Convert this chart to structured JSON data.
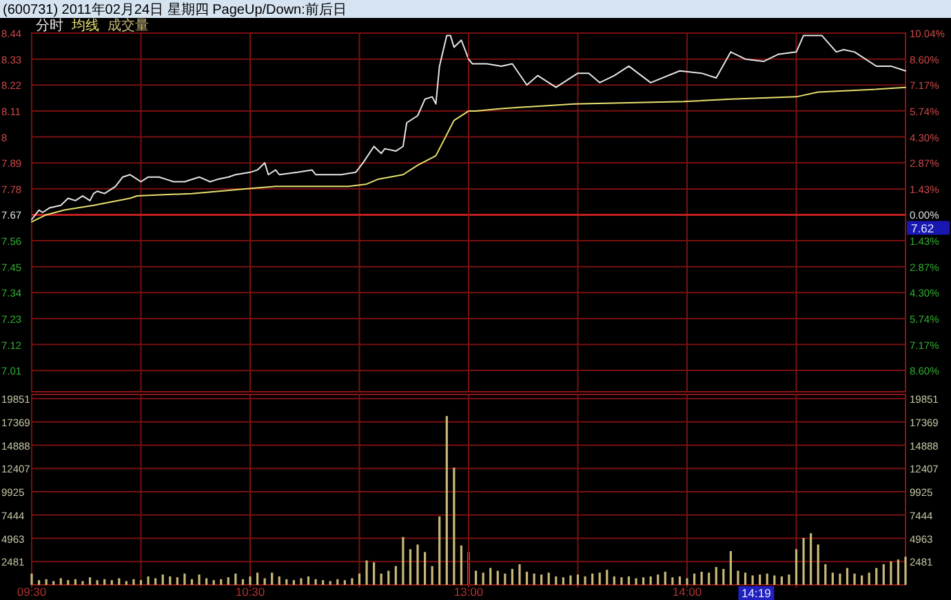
{
  "chart_data": [
    {
      "type": "line",
      "title": "(600731) 2011年02月24日 星期四 PageUp/Down:前后日",
      "legend": "top left",
      "grid": true,
      "tick_labels": "y",
      "line_style": "solid",
      "series": [
        {
          "name": "分时",
          "color": "#e6e6e6",
          "x": [
            "2011-02-24T09:30",
            "2011-02-24T09:32",
            "2011-02-24T09:33",
            "2011-02-24T09:35",
            "2011-02-24T09:38",
            "2011-02-24T09:40",
            "2011-02-24T09:42",
            "2011-02-24T09:44",
            "2011-02-24T09:46",
            "2011-02-24T09:47",
            "2011-02-24T09:48",
            "2011-02-24T09:50",
            "2011-02-24T09:53",
            "2011-02-24T09:55",
            "2011-02-24T09:57",
            "2011-02-24T09:58",
            "2011-02-24T10:00",
            "2011-02-24T10:02",
            "2011-02-24T10:05",
            "2011-02-24T10:07",
            "2011-02-24T10:09",
            "2011-02-24T10:12",
            "2011-02-24T10:16",
            "2011-02-24T10:19",
            "2011-02-24T10:21",
            "2011-02-24T10:24",
            "2011-02-24T10:26",
            "2011-02-24T10:30",
            "2011-02-24T10:32",
            "2011-02-24T10:34",
            "2011-02-24T10:35",
            "2011-02-24T10:37",
            "2011-02-24T10:38",
            "2011-02-24T10:43",
            "2011-02-24T10:47",
            "2011-02-24T10:48",
            "2011-02-24T10:55",
            "2011-02-24T10:59",
            "2011-02-24T11:01",
            "2011-02-24T11:04",
            "2011-02-24T11:06",
            "2011-02-24T11:07",
            "2011-02-24T11:10",
            "2011-02-24T11:12",
            "2011-02-24T11:13",
            "2011-02-24T11:16",
            "2011-02-24T11:18",
            "2011-02-24T11:20",
            "2011-02-24T11:21",
            "2011-02-24T11:22",
            "2011-02-24T11:24",
            "2011-02-24T11:25",
            "2011-02-24T11:26",
            "2011-02-24T11:28",
            "2011-02-24T11:30"
          ],
          "values": [
            7.65,
            7.69,
            7.68,
            7.7,
            7.71,
            7.74,
            7.73,
            7.75,
            7.73,
            7.76,
            7.77,
            7.76,
            7.79,
            7.83,
            7.84,
            7.83,
            7.81,
            7.83,
            7.83,
            7.82,
            7.81,
            7.81,
            7.83,
            7.81,
            7.82,
            7.83,
            7.84,
            7.85,
            7.86,
            7.89,
            7.84,
            7.86,
            7.84,
            7.85,
            7.86,
            7.84,
            7.84,
            7.85,
            7.89,
            7.96,
            7.93,
            7.95,
            7.94,
            7.96,
            8.06,
            8.09,
            8.16,
            8.17,
            8.14,
            8.3,
            8.43,
            8.43,
            8.38,
            8.41,
            8.33
          ]
        },
        {
          "name": "均线",
          "color": "#e8e070",
          "x": [
            "2011-02-24T09:30",
            "2011-02-24T09:34",
            "2011-02-24T09:39",
            "2011-02-24T09:47",
            "2011-02-24T09:57",
            "2011-02-24T09:59",
            "2011-02-24T10:14",
            "2011-02-24T10:29",
            "2011-02-24T10:37",
            "2011-02-24T10:57",
            "2011-02-24T11:02",
            "2011-02-24T11:05",
            "2011-02-24T11:12",
            "2011-02-24T11:16",
            "2011-02-24T11:21",
            "2011-02-24T11:23",
            "2011-02-24T11:26",
            "2011-02-24T11:29",
            "2011-02-24T11:30"
          ],
          "values": [
            7.64,
            7.67,
            7.69,
            7.71,
            7.74,
            7.75,
            7.76,
            7.78,
            7.79,
            7.79,
            7.8,
            7.82,
            7.84,
            7.88,
            7.92,
            7.98,
            8.07,
            8.1,
            8.11
          ]
        }
      ],
      "xlim": [
        "2011-02-24T09:30",
        "2011-02-24T11:30"
      ],
      "ylim": [
        6.92,
        8.44
      ],
      "yticks": [
        8.44,
        8.33,
        8.22,
        8.11,
        8.0,
        7.89,
        7.78,
        7.67,
        7.56,
        7.45,
        7.34,
        7.23,
        7.12,
        7.01
      ],
      "ref_lines": [
        {
          "axis": "y",
          "value": 7.67,
          "color": "#c02020"
        }
      ]
    },
    {
      "type": "line",
      "grid": true,
      "tick_labels": "y",
      "line_style": "solid",
      "series": [
        {
          "color": "#e6e6e6",
          "x": [
            "2011-02-24T13:00",
            "2011-02-24T13:01",
            "2011-02-24T13:05",
            "2011-02-24T13:09",
            "2011-02-24T13:12",
            "2011-02-24T13:16",
            "2011-02-24T13:19",
            "2011-02-24T13:24",
            "2011-02-24T13:30",
            "2011-02-24T13:33",
            "2011-02-24T13:36",
            "2011-02-24T13:40",
            "2011-02-24T13:44",
            "2011-02-24T13:50",
            "2011-02-24T13:58",
            "2011-02-24T14:04",
            "2011-02-24T14:08",
            "2011-02-24T14:12",
            "2011-02-24T14:16",
            "2011-02-24T14:21",
            "2011-02-24T14:25",
            "2011-02-24T14:30",
            "2011-02-24T14:32",
            "2011-02-24T14:37",
            "2011-02-24T14:41",
            "2011-02-24T14:43",
            "2011-02-24T14:46",
            "2011-02-24T14:52",
            "2011-02-24T14:56",
            "2011-02-24T15:00"
          ],
          "values": [
            8.33,
            8.31,
            8.31,
            8.3,
            8.31,
            8.22,
            8.26,
            8.21,
            8.27,
            8.27,
            8.23,
            8.26,
            8.3,
            8.23,
            8.28,
            8.27,
            8.25,
            8.36,
            8.33,
            8.32,
            8.35,
            8.36,
            8.43,
            8.43,
            8.36,
            8.37,
            8.36,
            8.3,
            8.3,
            8.28
          ]
        },
        {
          "color": "#e8e070",
          "x": [
            "2011-02-24T13:00",
            "2011-02-24T13:02",
            "2011-02-24T13:09",
            "2011-02-24T13:29",
            "2011-02-24T13:59",
            "2011-02-24T14:12",
            "2011-02-24T14:30",
            "2011-02-24T14:36",
            "2011-02-24T14:50",
            "2011-02-24T15:00"
          ],
          "values": [
            8.11,
            8.11,
            8.12,
            8.14,
            8.15,
            8.16,
            8.17,
            8.19,
            8.2,
            8.21
          ]
        }
      ],
      "xlim": [
        "2011-02-24T13:00",
        "2011-02-24T15:00"
      ],
      "ylim": [
        6.92,
        8.44
      ],
      "y2lim": [
        -9.78,
        10.04
      ],
      "y2ticks": [
        {
          "value": 10.04,
          "label": "10.04%"
        },
        {
          "value": 8.6,
          "label": "8.60%"
        },
        {
          "value": 7.17,
          "label": "7.17%"
        },
        {
          "value": 5.74,
          "label": "5.74%"
        },
        {
          "value": 4.3,
          "label": "4.30%"
        },
        {
          "value": 2.87,
          "label": "2.87%"
        },
        {
          "value": 1.43,
          "label": "1.43%"
        },
        {
          "value": 0,
          "label": "0.00%"
        },
        {
          "value": -1.43,
          "label": "1.43%"
        },
        {
          "value": -2.87,
          "label": "2.87%"
        },
        {
          "value": -4.3,
          "label": "4.30%"
        },
        {
          "value": -5.74,
          "label": "5.74%"
        },
        {
          "value": -7.17,
          "label": "7.17%"
        },
        {
          "value": -8.6,
          "label": "8.60%"
        }
      ],
      "ref_lines": [
        {
          "axis": "y2",
          "value": 0,
          "color": "#c02020"
        }
      ],
      "annotations": [
        "7.62"
      ]
    },
    {
      "type": "bar",
      "legend": "top left",
      "grid": true,
      "series": [
        {
          "name": "成交量",
          "color": "#c8b878",
          "x": [
            "2011-02-24T09:30",
            "2011-02-24T09:32",
            "2011-02-24T09:34",
            "2011-02-24T09:36",
            "2011-02-24T09:38",
            "2011-02-24T09:40",
            "2011-02-24T09:42",
            "2011-02-24T09:44",
            "2011-02-24T09:46",
            "2011-02-24T09:48",
            "2011-02-24T09:50",
            "2011-02-24T09:52",
            "2011-02-24T09:54",
            "2011-02-24T09:56",
            "2011-02-24T09:58",
            "2011-02-24T10:00",
            "2011-02-24T10:02",
            "2011-02-24T10:04",
            "2011-02-24T10:06",
            "2011-02-24T10:08",
            "2011-02-24T10:10",
            "2011-02-24T10:12",
            "2011-02-24T10:14",
            "2011-02-24T10:16",
            "2011-02-24T10:18",
            "2011-02-24T10:20",
            "2011-02-24T10:22",
            "2011-02-24T10:24",
            "2011-02-24T10:26",
            "2011-02-24T10:28",
            "2011-02-24T10:30",
            "2011-02-24T10:32",
            "2011-02-24T10:34",
            "2011-02-24T10:36",
            "2011-02-24T10:38",
            "2011-02-24T10:40",
            "2011-02-24T10:42",
            "2011-02-24T10:44",
            "2011-02-24T10:46",
            "2011-02-24T10:48",
            "2011-02-24T10:50",
            "2011-02-24T10:52",
            "2011-02-24T10:54",
            "2011-02-24T10:56",
            "2011-02-24T10:58",
            "2011-02-24T11:00",
            "2011-02-24T11:02",
            "2011-02-24T11:04",
            "2011-02-24T11:06",
            "2011-02-24T11:08",
            "2011-02-24T11:10",
            "2011-02-24T11:12",
            "2011-02-24T11:14",
            "2011-02-24T11:16",
            "2011-02-24T11:18",
            "2011-02-24T11:20",
            "2011-02-24T11:22",
            "2011-02-24T11:24",
            "2011-02-24T11:26",
            "2011-02-24T11:28",
            "2011-02-24T11:30"
          ],
          "values": [
            1200,
            500,
            600,
            400,
            700,
            500,
            600,
            400,
            800,
            500,
            600,
            500,
            700,
            400,
            600,
            500,
            900,
            700,
            1100,
            900,
            800,
            1200,
            600,
            1100,
            700,
            500,
            600,
            800,
            1200,
            600,
            900,
            1300,
            700,
            1300,
            900,
            600,
            500,
            700,
            900,
            600,
            500,
            400,
            600,
            500,
            700,
            1200,
            2600,
            2400,
            1200,
            1500,
            2000,
            5100,
            3800,
            4300,
            3500,
            2000,
            7300,
            18000,
            12500,
            4200,
            3500
          ]
        }
      ],
      "xlim": [
        "2011-02-24T09:30",
        "2011-02-24T11:30"
      ],
      "xticks": [
        {
          "value": "2011-02-24T09:30",
          "label": "09:30"
        },
        {
          "value": "2011-02-24T10:00",
          "label": null
        },
        {
          "value": "2011-02-24T10:30",
          "label": "10:30"
        },
        {
          "value": "2011-02-24T11:00",
          "label": null
        }
      ],
      "ylim": [
        0,
        20300
      ],
      "yticks": [
        2481,
        4963,
        7444,
        9925,
        12407,
        14888,
        17369,
        19851
      ]
    },
    {
      "type": "bar",
      "grid": true,
      "series": [
        {
          "color": "#c8b878",
          "x": [
            "2011-02-24T13:02",
            "2011-02-24T13:04",
            "2011-02-24T13:06",
            "2011-02-24T13:08",
            "2011-02-24T13:10",
            "2011-02-24T13:12",
            "2011-02-24T13:14",
            "2011-02-24T13:16",
            "2011-02-24T13:18",
            "2011-02-24T13:20",
            "2011-02-24T13:22",
            "2011-02-24T13:24",
            "2011-02-24T13:26",
            "2011-02-24T13:28",
            "2011-02-24T13:30",
            "2011-02-24T13:32",
            "2011-02-24T13:34",
            "2011-02-24T13:36",
            "2011-02-24T13:38",
            "2011-02-24T13:40",
            "2011-02-24T13:42",
            "2011-02-24T13:44",
            "2011-02-24T13:46",
            "2011-02-24T13:48",
            "2011-02-24T13:50",
            "2011-02-24T13:52",
            "2011-02-24T13:54",
            "2011-02-24T13:56",
            "2011-02-24T13:58",
            "2011-02-24T14:00",
            "2011-02-24T14:02",
            "2011-02-24T14:04",
            "2011-02-24T14:06",
            "2011-02-24T14:08",
            "2011-02-24T14:10",
            "2011-02-24T14:12",
            "2011-02-24T14:14",
            "2011-02-24T14:16",
            "2011-02-24T14:18",
            "2011-02-24T14:20",
            "2011-02-24T14:22",
            "2011-02-24T14:24",
            "2011-02-24T14:26",
            "2011-02-24T14:28",
            "2011-02-24T14:30",
            "2011-02-24T14:32",
            "2011-02-24T14:34",
            "2011-02-24T14:36",
            "2011-02-24T14:38",
            "2011-02-24T14:40",
            "2011-02-24T14:42",
            "2011-02-24T14:44",
            "2011-02-24T14:46",
            "2011-02-24T14:48",
            "2011-02-24T14:50",
            "2011-02-24T14:52",
            "2011-02-24T14:54",
            "2011-02-24T14:56",
            "2011-02-24T14:58",
            "2011-02-24T15:00"
          ],
          "values": [
            1500,
            1300,
            1800,
            1500,
            1200,
            1700,
            2200,
            1400,
            1200,
            1100,
            1300,
            900,
            800,
            1000,
            1100,
            900,
            1200,
            1300,
            1600,
            900,
            800,
            900,
            700,
            800,
            900,
            1100,
            1400,
            800,
            900,
            700,
            1200,
            1400,
            1300,
            1900,
            1700,
            3600,
            1500,
            1300,
            1000,
            1100,
            1200,
            1000,
            900,
            1100,
            3800,
            5000,
            5500,
            4300,
            2200,
            1300,
            1200,
            1800,
            1200,
            1000,
            1300,
            1800,
            2200,
            2500,
            2700,
            3000
          ]
        }
      ],
      "xlim": [
        "2011-02-24T13:00",
        "2011-02-24T15:00"
      ],
      "xticks": [
        {
          "value": "2011-02-24T13:00",
          "label": "13:00"
        },
        {
          "value": "2011-02-24T13:30",
          "label": null
        },
        {
          "value": "2011-02-24T14:00",
          "label": "14:00"
        },
        {
          "value": "2011-02-24T14:19",
          "label": "14:19"
        },
        {
          "value": "2011-02-24T14:30",
          "label": null
        }
      ],
      "ylim": [
        0,
        20300
      ],
      "yticks": [
        2481,
        4963,
        7444,
        9925,
        12407,
        14888,
        17369,
        19851
      ]
    }
  ]
}
